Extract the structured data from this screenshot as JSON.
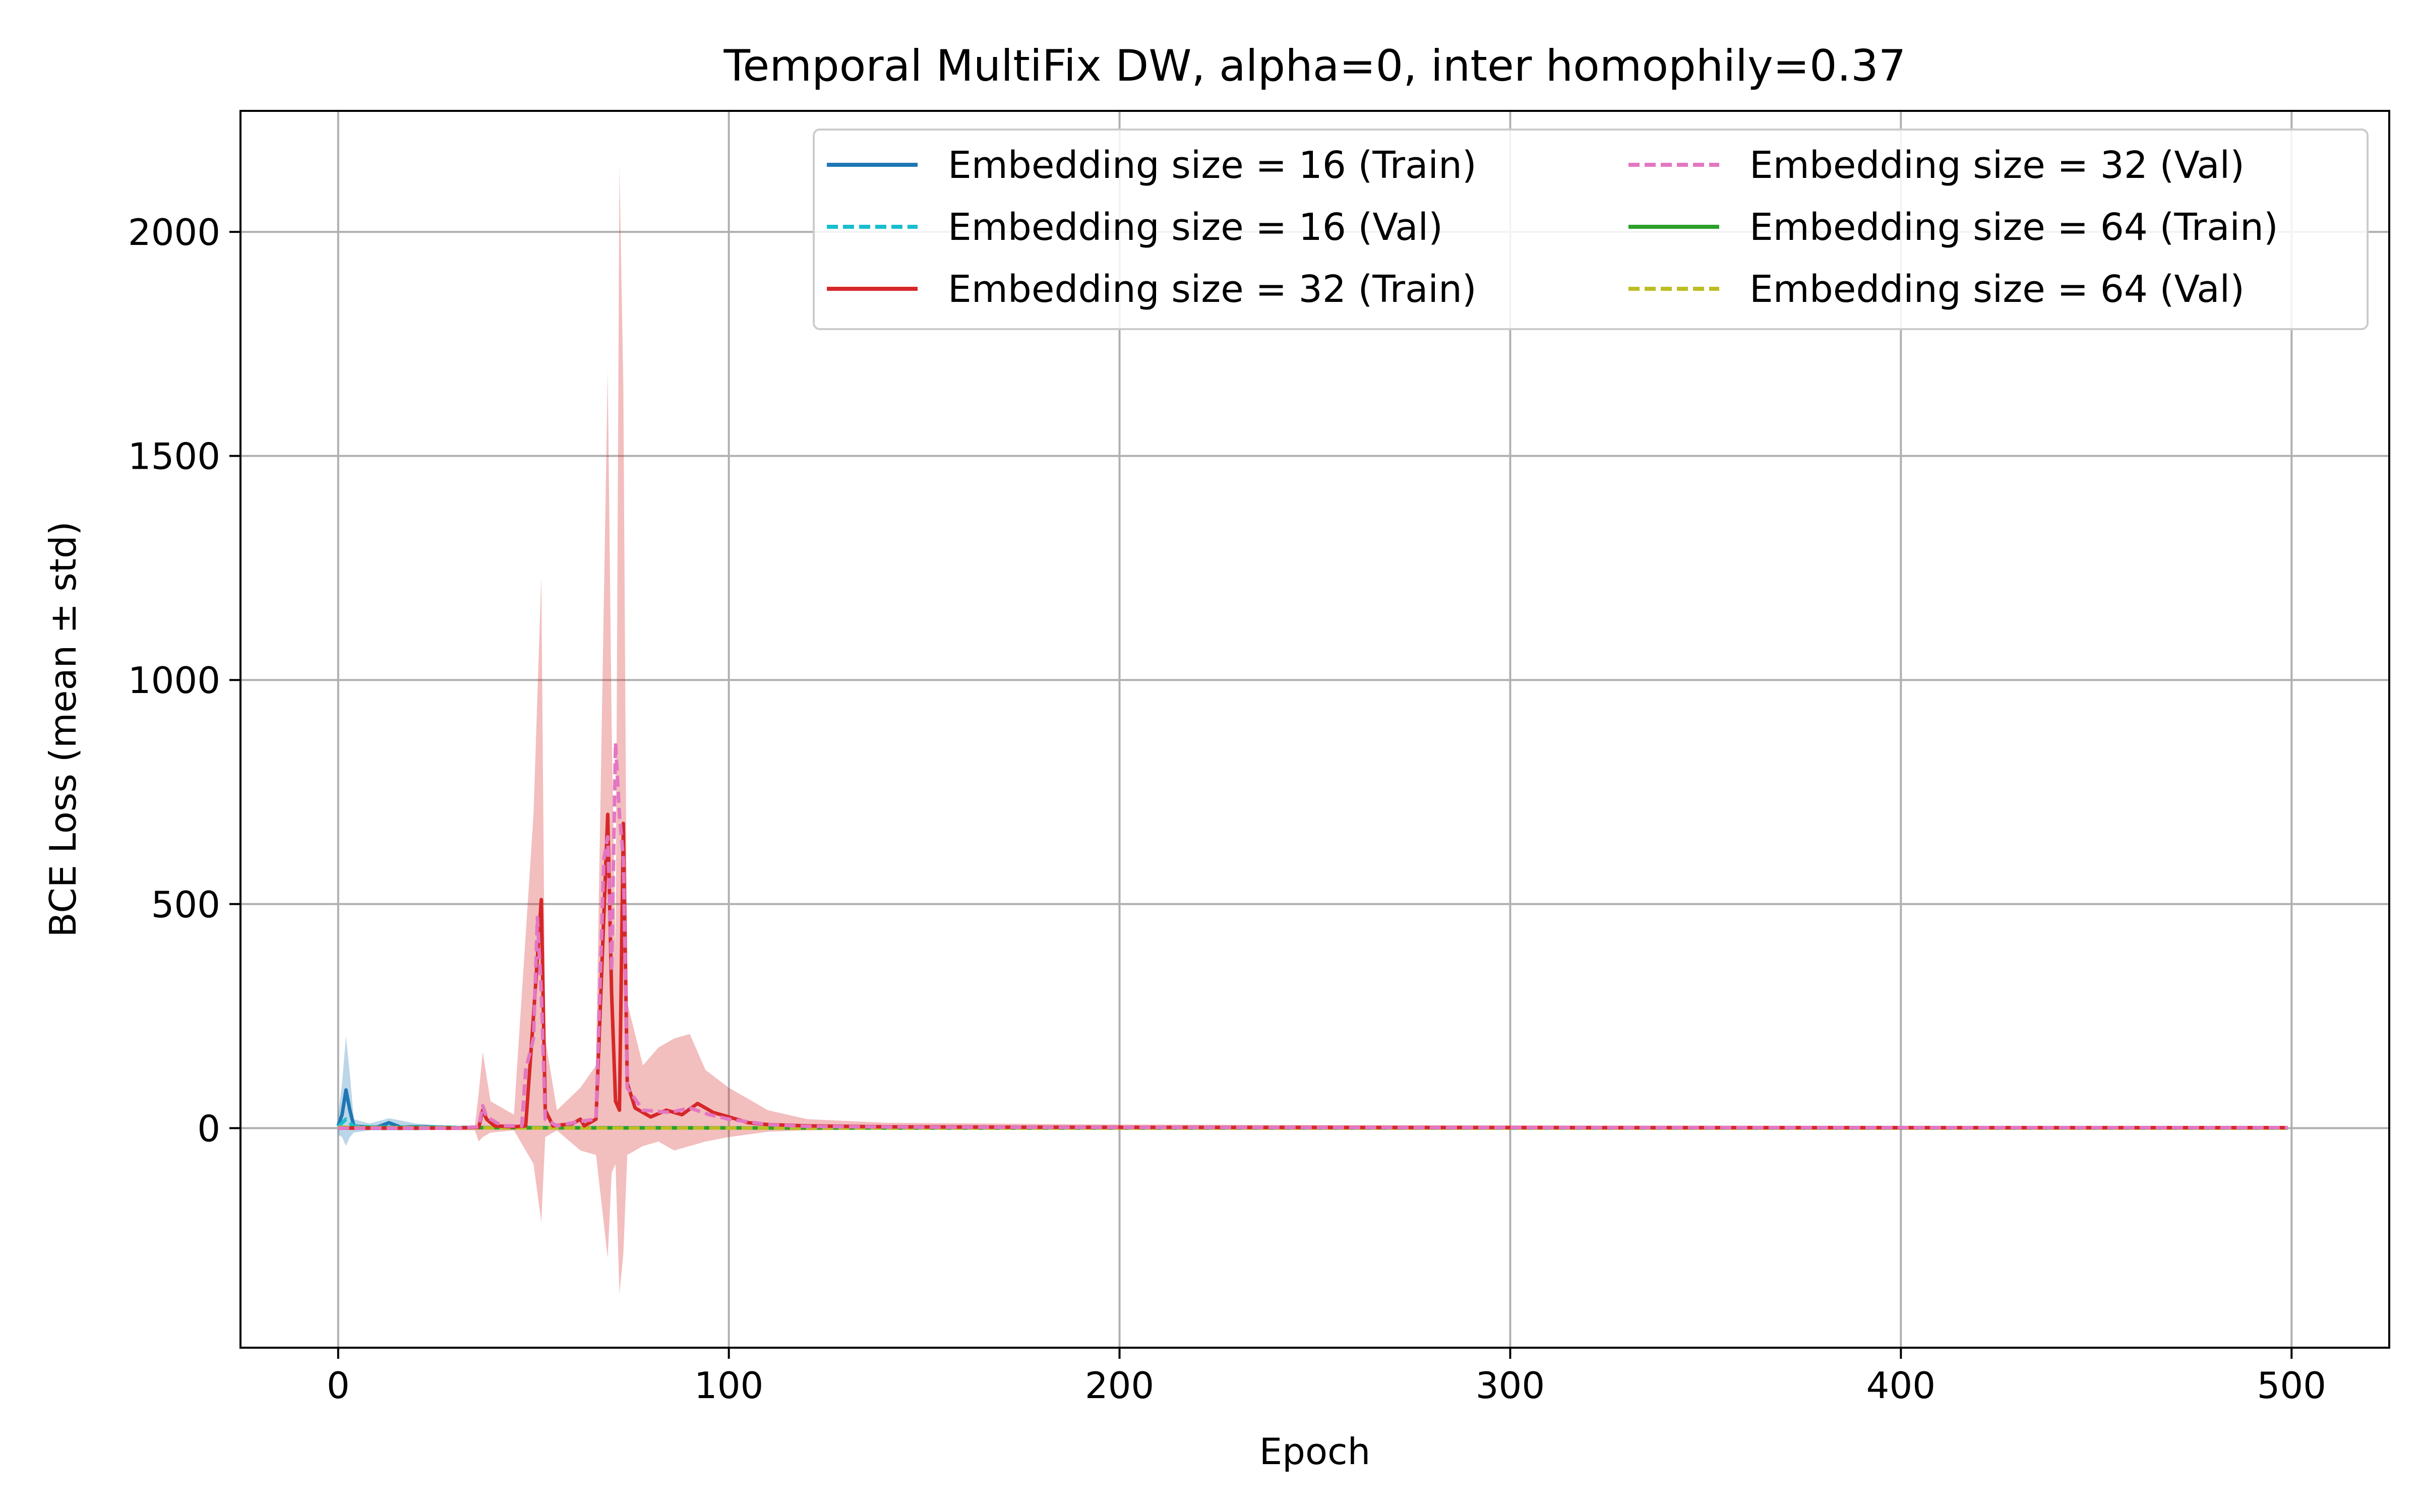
{
  "chart_data": {
    "type": "line",
    "title": "Temporal MultiFix DW, alpha=0, inter homophily=0.37",
    "xlabel": "Epoch",
    "ylabel": "BCE Loss (mean ± std)",
    "xlim": [
      -25,
      525
    ],
    "ylim": [
      -490,
      2270
    ],
    "x_ticks": [
      0,
      100,
      200,
      300,
      400,
      500
    ],
    "x_tick_labels": [
      "0",
      "100",
      "200",
      "300",
      "400",
      "500"
    ],
    "y_ticks": [
      0,
      500,
      1000,
      1500,
      2000
    ],
    "y_tick_labels": [
      "0",
      "500",
      "1000",
      "1500",
      "2000"
    ],
    "grid": true,
    "legend_position": "top-right",
    "legend_columns": 2,
    "series": [
      {
        "name": "Embedding size = 16 (Train)",
        "color": "#1f77b4",
        "dash": "solid",
        "points": [
          [
            0,
            5
          ],
          [
            1,
            30
          ],
          [
            2,
            85
          ],
          [
            3,
            40
          ],
          [
            4,
            5
          ],
          [
            6,
            3
          ],
          [
            10,
            2
          ],
          [
            13,
            12
          ],
          [
            16,
            2
          ],
          [
            20,
            3
          ],
          [
            25,
            2
          ],
          [
            30,
            1
          ],
          [
            40,
            1
          ],
          [
            60,
            1
          ],
          [
            100,
            0.5
          ],
          [
            200,
            0.3
          ],
          [
            300,
            0.3
          ],
          [
            400,
            0.3
          ],
          [
            499,
            0.3
          ]
        ],
        "band": [
          [
            0,
            -15,
            30
          ],
          [
            1,
            -20,
            100
          ],
          [
            2,
            -40,
            205
          ],
          [
            3,
            -20,
            120
          ],
          [
            4,
            -10,
            20
          ],
          [
            8,
            -5,
            10
          ],
          [
            13,
            -5,
            22
          ],
          [
            20,
            -5,
            10
          ],
          [
            30,
            -3,
            5
          ],
          [
            499,
            -1,
            1
          ]
        ]
      },
      {
        "name": "Embedding size = 16 (Val)",
        "color": "#17becf",
        "dash": "dashed",
        "points": [
          [
            0,
            3
          ],
          [
            2,
            20
          ],
          [
            4,
            4
          ],
          [
            10,
            2
          ],
          [
            20,
            2
          ],
          [
            50,
            1
          ],
          [
            100,
            0.5
          ],
          [
            200,
            0.4
          ],
          [
            300,
            0.4
          ],
          [
            400,
            0.4
          ],
          [
            499,
            0.4
          ]
        ],
        "band": []
      },
      {
        "name": "Embedding size = 32 (Train)",
        "color": "#d62728",
        "dash": "solid",
        "points": [
          [
            0,
            0
          ],
          [
            30,
            0
          ],
          [
            36,
            2
          ],
          [
            37,
            40
          ],
          [
            38,
            20
          ],
          [
            40,
            5
          ],
          [
            45,
            3
          ],
          [
            48,
            5
          ],
          [
            50,
            250
          ],
          [
            52,
            510
          ],
          [
            53,
            40
          ],
          [
            55,
            5
          ],
          [
            60,
            10
          ],
          [
            62,
            20
          ],
          [
            63,
            5
          ],
          [
            66,
            20
          ],
          [
            69,
            700
          ],
          [
            70,
            300
          ],
          [
            71,
            60
          ],
          [
            72,
            40
          ],
          [
            73,
            680
          ],
          [
            74,
            100
          ],
          [
            76,
            45
          ],
          [
            80,
            25
          ],
          [
            84,
            40
          ],
          [
            88,
            30
          ],
          [
            92,
            55
          ],
          [
            96,
            35
          ],
          [
            100,
            25
          ],
          [
            105,
            12
          ],
          [
            110,
            8
          ],
          [
            120,
            5
          ],
          [
            140,
            3
          ],
          [
            180,
            2
          ],
          [
            250,
            1.5
          ],
          [
            350,
            1
          ],
          [
            499,
            1
          ]
        ],
        "band": [
          [
            0,
            -2,
            2
          ],
          [
            35,
            -5,
            5
          ],
          [
            36,
            -30,
            80
          ],
          [
            37,
            -20,
            170
          ],
          [
            39,
            -10,
            60
          ],
          [
            45,
            -5,
            30
          ],
          [
            50,
            -80,
            700
          ],
          [
            52,
            -210,
            1230
          ],
          [
            53,
            -20,
            200
          ],
          [
            56,
            -5,
            40
          ],
          [
            62,
            -50,
            90
          ],
          [
            66,
            -60,
            140
          ],
          [
            69,
            -290,
            1690
          ],
          [
            70,
            -100,
            900
          ],
          [
            71,
            -80,
            400
          ],
          [
            72,
            -370,
            2150
          ],
          [
            73,
            -280,
            1650
          ],
          [
            74,
            -60,
            280
          ],
          [
            78,
            -40,
            140
          ],
          [
            82,
            -30,
            180
          ],
          [
            86,
            -50,
            200
          ],
          [
            90,
            -40,
            210
          ],
          [
            94,
            -30,
            130
          ],
          [
            100,
            -20,
            90
          ],
          [
            110,
            -8,
            40
          ],
          [
            120,
            -5,
            20
          ],
          [
            140,
            -3,
            12
          ],
          [
            200,
            -2,
            8
          ],
          [
            300,
            -1,
            6
          ],
          [
            499,
            -1,
            4
          ]
        ]
      },
      {
        "name": "Embedding size = 32 (Val)",
        "color": "#e377c2",
        "dash": "dashed",
        "points": [
          [
            0,
            0
          ],
          [
            30,
            0
          ],
          [
            36,
            3
          ],
          [
            37,
            50
          ],
          [
            38,
            25
          ],
          [
            42,
            5
          ],
          [
            47,
            5
          ],
          [
            48,
            130
          ],
          [
            50,
            200
          ],
          [
            51,
            470
          ],
          [
            52,
            300
          ],
          [
            53,
            20
          ],
          [
            56,
            5
          ],
          [
            62,
            15
          ],
          [
            66,
            20
          ],
          [
            68,
            600
          ],
          [
            69,
            650
          ],
          [
            70,
            350
          ],
          [
            71,
            860
          ],
          [
            72,
            700
          ],
          [
            73,
            600
          ],
          [
            74,
            90
          ],
          [
            78,
            40
          ],
          [
            85,
            35
          ],
          [
            90,
            45
          ],
          [
            95,
            30
          ],
          [
            100,
            20
          ],
          [
            110,
            8
          ],
          [
            120,
            4
          ],
          [
            150,
            2
          ],
          [
            200,
            1.5
          ],
          [
            300,
            1
          ],
          [
            499,
            1
          ]
        ],
        "band": []
      },
      {
        "name": "Embedding size = 64 (Train)",
        "color": "#2ca02c",
        "dash": "solid",
        "points": [
          [
            0,
            2
          ],
          [
            5,
            1
          ],
          [
            20,
            1
          ],
          [
            50,
            0.5
          ],
          [
            100,
            0.3
          ],
          [
            200,
            0.2
          ],
          [
            300,
            0.2
          ],
          [
            400,
            0.2
          ],
          [
            499,
            0.2
          ]
        ],
        "band": []
      },
      {
        "name": "Embedding size = 64 (Val)",
        "color": "#bcbd22",
        "dash": "dashed",
        "points": [
          [
            0,
            2
          ],
          [
            5,
            1
          ],
          [
            20,
            1
          ],
          [
            50,
            0.5
          ],
          [
            100,
            0.3
          ],
          [
            200,
            0.2
          ],
          [
            300,
            0.2
          ],
          [
            400,
            0.2
          ],
          [
            499,
            0.2
          ]
        ],
        "band": []
      }
    ]
  }
}
